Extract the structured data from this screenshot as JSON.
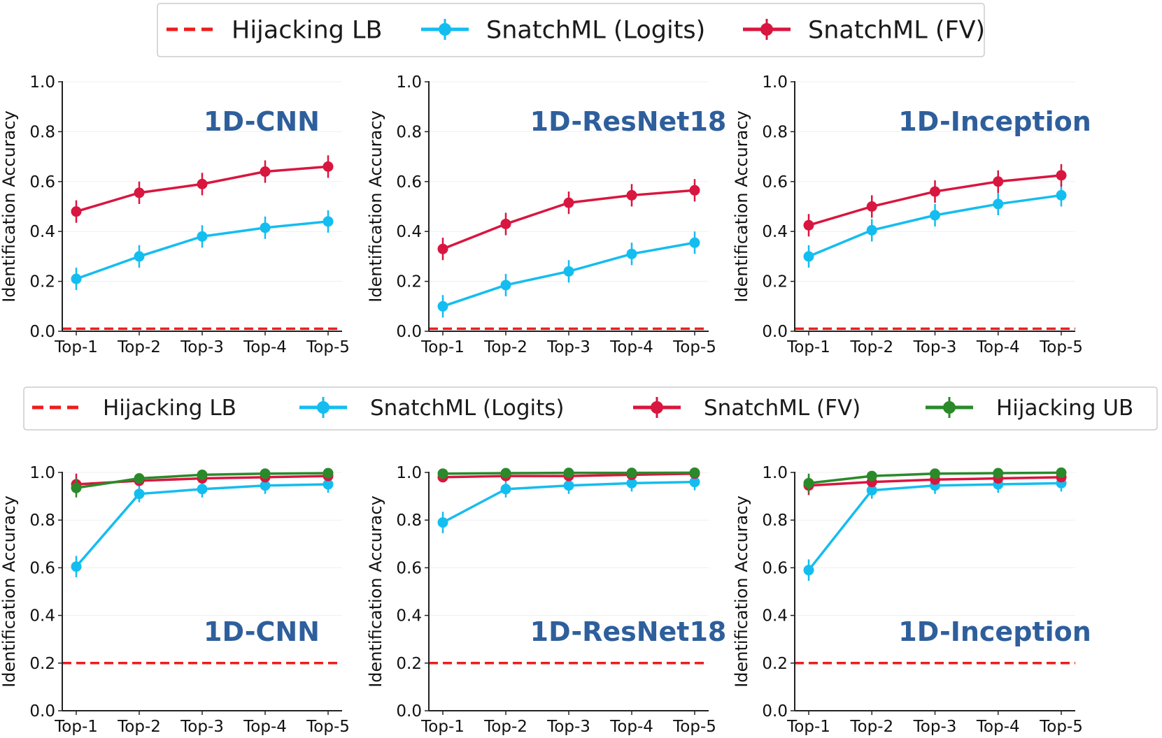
{
  "legends": [
    {
      "entries": [
        {
          "label": "Hijacking LB",
          "style": "dashed",
          "color": "#ee1c1c"
        },
        {
          "label": "SnatchML (Logits)",
          "style": "marker",
          "color": "#14bdf0"
        },
        {
          "label": "SnatchML (FV)",
          "style": "marker",
          "color": "#d8163f"
        }
      ]
    },
    {
      "entries": [
        {
          "label": "Hijacking LB",
          "style": "dashed",
          "color": "#ee1c1c"
        },
        {
          "label": "SnatchML (Logits)",
          "style": "marker",
          "color": "#14bdf0"
        },
        {
          "label": "SnatchML (FV)",
          "style": "marker",
          "color": "#d8163f"
        },
        {
          "label": "Hijacking UB",
          "style": "marker",
          "color": "#2a8a2a"
        }
      ]
    }
  ],
  "chart_data": [
    {
      "type": "line",
      "row": 0,
      "col": 0,
      "title": "1D-CNN",
      "title_position": "top",
      "categories": [
        "Top-1",
        "Top-2",
        "Top-3",
        "Top-4",
        "Top-5"
      ],
      "ylabel": "Identification Accuracy",
      "ylim": [
        0,
        1
      ],
      "yticks": [
        "0.0",
        "0.2",
        "0.4",
        "0.6",
        "0.8",
        "1.0"
      ],
      "baseline": {
        "name": "Hijacking LB",
        "value": 0.01
      },
      "series": [
        {
          "name": "SnatchML (Logits)",
          "values": [
            0.21,
            0.3,
            0.38,
            0.415,
            0.44
          ],
          "err": [
            0.045,
            0.045,
            0.045,
            0.045,
            0.045
          ]
        },
        {
          "name": "SnatchML (FV)",
          "values": [
            0.48,
            0.555,
            0.59,
            0.64,
            0.66
          ],
          "err": [
            0.045,
            0.045,
            0.045,
            0.045,
            0.045
          ]
        }
      ]
    },
    {
      "type": "line",
      "row": 0,
      "col": 1,
      "title": "1D-ResNet18",
      "title_position": "top",
      "categories": [
        "Top-1",
        "Top-2",
        "Top-3",
        "Top-4",
        "Top-5"
      ],
      "ylabel": "Identification Accuracy",
      "ylim": [
        0,
        1
      ],
      "yticks": [
        "0.0",
        "0.2",
        "0.4",
        "0.6",
        "0.8",
        "1.0"
      ],
      "baseline": {
        "name": "Hijacking LB",
        "value": 0.01
      },
      "series": [
        {
          "name": "SnatchML (Logits)",
          "values": [
            0.1,
            0.185,
            0.24,
            0.31,
            0.355
          ],
          "err": [
            0.045,
            0.045,
            0.045,
            0.045,
            0.045
          ]
        },
        {
          "name": "SnatchML (FV)",
          "values": [
            0.33,
            0.43,
            0.515,
            0.545,
            0.565
          ],
          "err": [
            0.045,
            0.045,
            0.045,
            0.045,
            0.045
          ]
        }
      ]
    },
    {
      "type": "line",
      "row": 0,
      "col": 2,
      "title": "1D-Inception",
      "title_position": "top",
      "categories": [
        "Top-1",
        "Top-2",
        "Top-3",
        "Top-4",
        "Top-5"
      ],
      "ylabel": "Identification Accuracy",
      "ylim": [
        0,
        1
      ],
      "yticks": [
        "0.0",
        "0.2",
        "0.4",
        "0.6",
        "0.8",
        "1.0"
      ],
      "baseline": {
        "name": "Hijacking LB",
        "value": 0.01
      },
      "series": [
        {
          "name": "SnatchML (Logits)",
          "values": [
            0.3,
            0.405,
            0.465,
            0.51,
            0.545
          ],
          "err": [
            0.045,
            0.045,
            0.045,
            0.045,
            0.045
          ]
        },
        {
          "name": "SnatchML (FV)",
          "values": [
            0.425,
            0.5,
            0.56,
            0.6,
            0.625
          ],
          "err": [
            0.045,
            0.045,
            0.045,
            0.045,
            0.045
          ]
        }
      ]
    },
    {
      "type": "line",
      "row": 1,
      "col": 0,
      "title": "1D-CNN",
      "title_position": "bottom",
      "categories": [
        "Top-1",
        "Top-2",
        "Top-3",
        "Top-4",
        "Top-5"
      ],
      "ylabel": "Identification Accuracy",
      "ylim": [
        0,
        1
      ],
      "yticks": [
        "0.0",
        "0.2",
        "0.4",
        "0.6",
        "0.8",
        "1.0"
      ],
      "baseline": {
        "name": "Hijacking LB",
        "value": 0.2
      },
      "series": [
        {
          "name": "SnatchML (Logits)",
          "values": [
            0.605,
            0.91,
            0.93,
            0.945,
            0.95
          ],
          "err": [
            0.045,
            0.035,
            0.035,
            0.035,
            0.035
          ]
        },
        {
          "name": "SnatchML (FV)",
          "values": [
            0.95,
            0.965,
            0.975,
            0.98,
            0.985
          ],
          "err": [
            0.045,
            0.02,
            0.015,
            0.015,
            0.01
          ]
        },
        {
          "name": "Hijacking UB",
          "values": [
            0.935,
            0.975,
            0.99,
            0.995,
            0.997
          ],
          "err": [
            0.04,
            0.02,
            0.01,
            0.005,
            0.005
          ]
        }
      ]
    },
    {
      "type": "line",
      "row": 1,
      "col": 1,
      "title": "1D-ResNet18",
      "title_position": "bottom",
      "categories": [
        "Top-1",
        "Top-2",
        "Top-3",
        "Top-4",
        "Top-5"
      ],
      "ylabel": "Identification Accuracy",
      "ylim": [
        0,
        1
      ],
      "yticks": [
        "0.0",
        "0.2",
        "0.4",
        "0.6",
        "0.8",
        "1.0"
      ],
      "baseline": {
        "name": "Hijacking LB",
        "value": 0.2
      },
      "series": [
        {
          "name": "SnatchML (Logits)",
          "values": [
            0.79,
            0.93,
            0.945,
            0.955,
            0.96
          ],
          "err": [
            0.045,
            0.035,
            0.035,
            0.035,
            0.035
          ]
        },
        {
          "name": "SnatchML (FV)",
          "values": [
            0.98,
            0.985,
            0.985,
            0.99,
            0.995
          ],
          "err": [
            0.02,
            0.01,
            0.01,
            0.01,
            0.005
          ]
        },
        {
          "name": "Hijacking UB",
          "values": [
            0.995,
            0.997,
            0.998,
            0.998,
            0.999
          ],
          "err": [
            0.005,
            0.005,
            0.005,
            0.005,
            0.005
          ]
        }
      ]
    },
    {
      "type": "line",
      "row": 1,
      "col": 2,
      "title": "1D-Inception",
      "title_position": "bottom",
      "categories": [
        "Top-1",
        "Top-2",
        "Top-3",
        "Top-4",
        "Top-5"
      ],
      "ylabel": "Identification Accuracy",
      "ylim": [
        0,
        1
      ],
      "yticks": [
        "0.0",
        "0.2",
        "0.4",
        "0.6",
        "0.8",
        "1.0"
      ],
      "baseline": {
        "name": "Hijacking LB",
        "value": 0.2
      },
      "series": [
        {
          "name": "SnatchML (Logits)",
          "values": [
            0.59,
            0.925,
            0.945,
            0.95,
            0.955
          ],
          "err": [
            0.045,
            0.035,
            0.035,
            0.035,
            0.035
          ]
        },
        {
          "name": "SnatchML (FV)",
          "values": [
            0.945,
            0.96,
            0.97,
            0.975,
            0.98
          ],
          "err": [
            0.04,
            0.02,
            0.015,
            0.015,
            0.01
          ]
        },
        {
          "name": "Hijacking UB",
          "values": [
            0.955,
            0.985,
            0.995,
            0.997,
            0.999
          ],
          "err": [
            0.04,
            0.015,
            0.005,
            0.005,
            0.005
          ]
        }
      ]
    }
  ]
}
